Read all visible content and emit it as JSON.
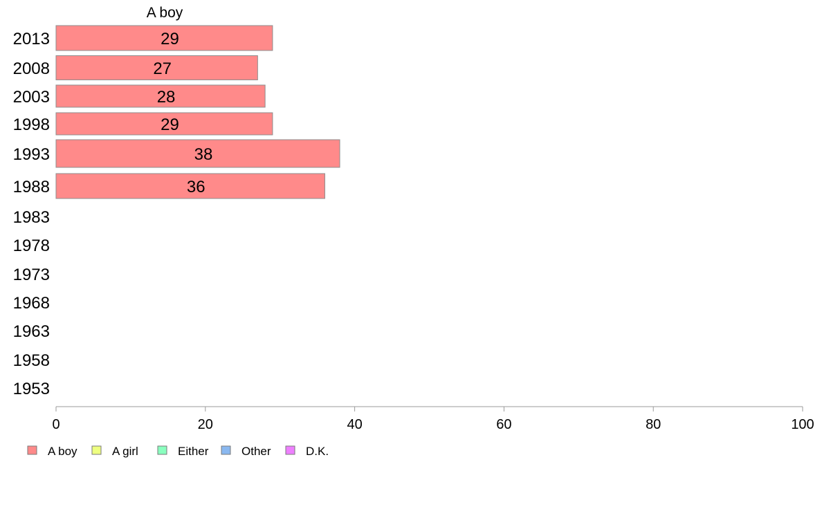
{
  "chart_data": {
    "type": "bar",
    "orientation": "horizontal",
    "stacked": true,
    "categories": [
      "2013",
      "2008",
      "2003",
      "1998",
      "1993",
      "1988",
      "1983",
      "1978",
      "1973",
      "1968",
      "1963",
      "1958",
      "1953"
    ],
    "series": [
      {
        "name": "A boy",
        "color": "#ff8a8a",
        "values": [
          29,
          27,
          28,
          29,
          38,
          36,
          null,
          null,
          null,
          null,
          null,
          null,
          null
        ]
      }
    ],
    "series_header": "A boy",
    "xlim": [
      0,
      100
    ],
    "xticks": [
      "0",
      "20",
      "40",
      "60",
      "80",
      "100"
    ],
    "legend": {
      "placement": "bottom-left",
      "items": [
        {
          "label": "A boy",
          "color": "#ff8a8a"
        },
        {
          "label": "A girl",
          "color": "#eeff80"
        },
        {
          "label": "Either",
          "color": "#8affbf"
        },
        {
          "label": "Other",
          "color": "#8ab8f0"
        },
        {
          "label": "D.K.",
          "color": "#ee80ff"
        }
      ]
    },
    "grid": false,
    "title": "",
    "xlabel": "",
    "ylabel": ""
  }
}
